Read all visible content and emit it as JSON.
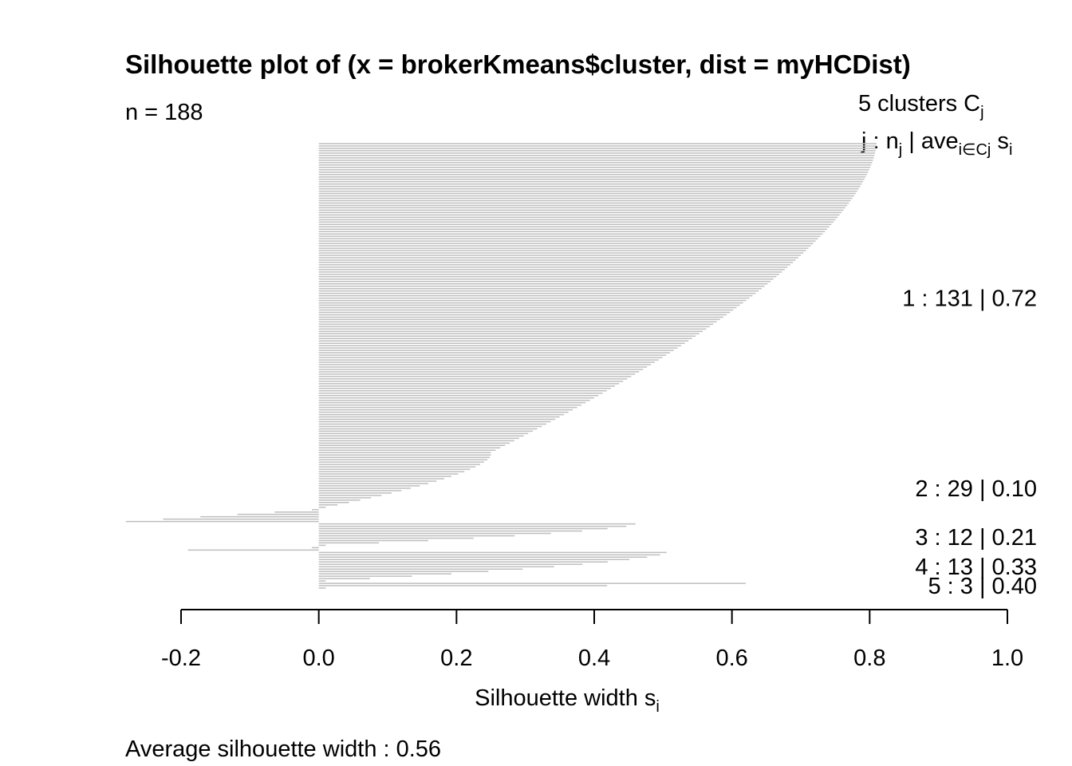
{
  "chart_data": {
    "type": "bar",
    "orientation": "horizontal",
    "title": "Silhouette plot of (x = brokerKmeans$cluster, dist = myHCDist)",
    "n_label": "n = 188",
    "header_clusters": "5  clusters  C",
    "header_clusters_sub": "j",
    "header_j": "j :  n",
    "header_j_sub": "j",
    "header_ave": " | ave",
    "header_ave_sub": "i∈Cj",
    "header_s": "  s",
    "header_s_sub": "i",
    "xlabel": "Silhouette width s",
    "xlabel_sub": "i",
    "footer": "Average silhouette width :  0.56",
    "xlim": [
      -0.2,
      1.0
    ],
    "xticks": [
      -0.2,
      0.0,
      0.2,
      0.4,
      0.6,
      0.8,
      1.0
    ],
    "xtick_labels": [
      "-0.2",
      "0.0",
      "0.2",
      "0.4",
      "0.6",
      "0.8",
      "1.0"
    ],
    "bar_color": "#bebebe",
    "clusters": [
      {
        "label": "1 :   131  |  0.72",
        "n": 131,
        "avg": 0.72,
        "max_width": 0.81,
        "min_width": 0.25
      },
      {
        "label": "2 :   29  |  0.10",
        "n": 29,
        "avg": 0.1,
        "max_width": 0.25,
        "min_width": -0.28,
        "n_negative": 6
      },
      {
        "label": "3 :   12  |  0.21",
        "n": 12,
        "avg": 0.21,
        "max_width": 0.46,
        "min_width": -0.19,
        "n_negative": 2
      },
      {
        "label": "4 :   13  |  0.33",
        "n": 13,
        "avg": 0.33,
        "max_width": 0.505,
        "min_width": 0.0
      },
      {
        "label": "5 :   3  |  0.40",
        "n": 3,
        "avg": 0.4,
        "max_width": 0.62,
        "min_width": 0.0
      }
    ]
  }
}
